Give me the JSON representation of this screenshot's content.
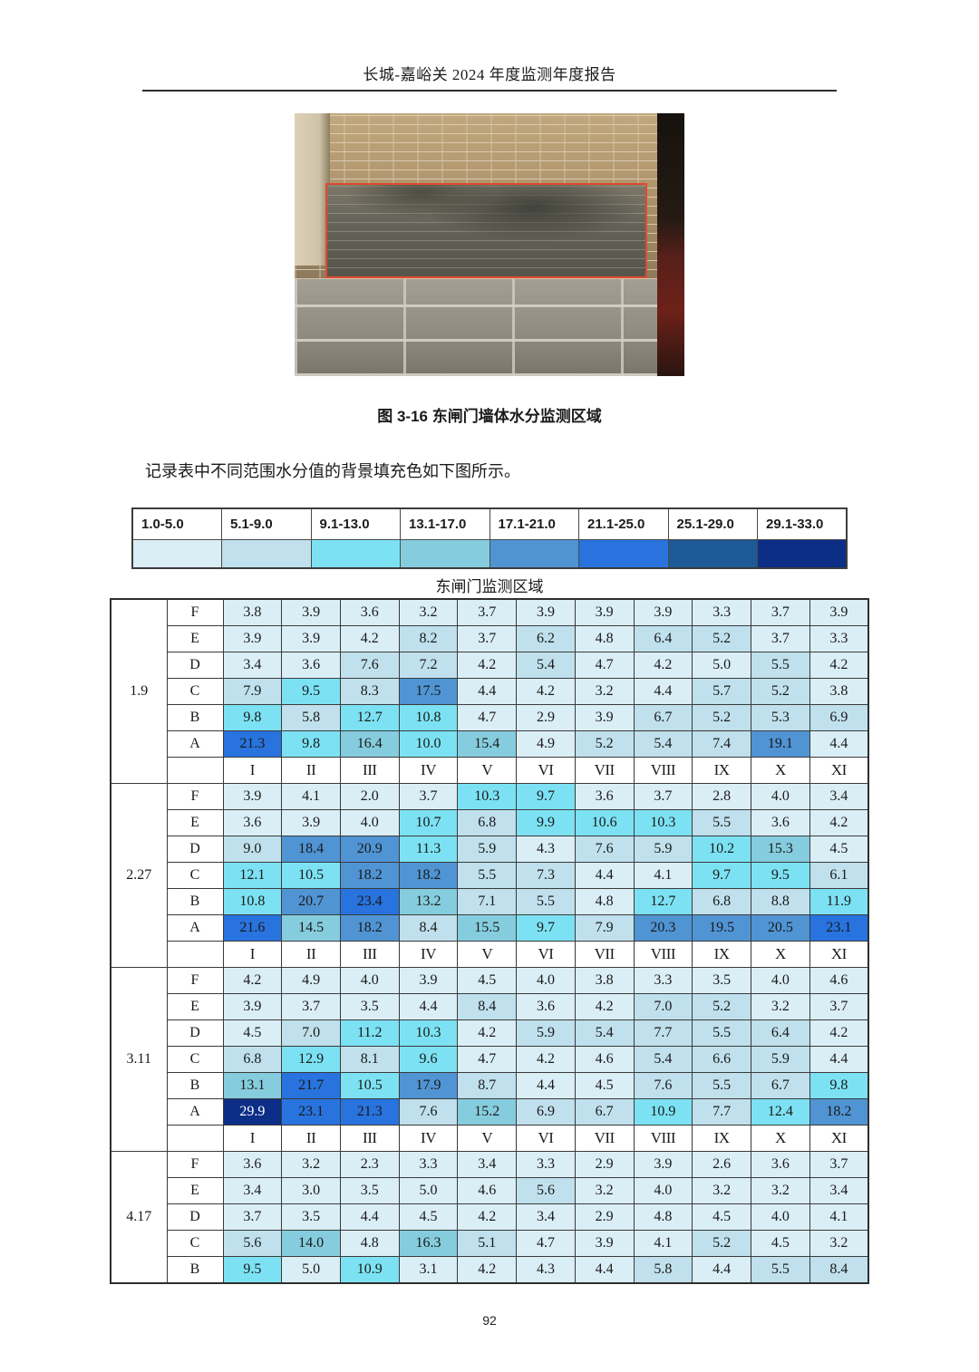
{
  "header": {
    "title": "长城-嘉峪关 2024 年度监测年度报告"
  },
  "figure": {
    "caption": "图 3-16 东闸门墙体水分监测区域"
  },
  "paragraph": "记录表中不同范围水分值的背景填充色如下图所示。",
  "legend": {
    "ranges": [
      "1.0-5.0",
      "5.1-9.0",
      "9.1-13.0",
      "13.1-17.0",
      "17.1-21.0",
      "21.1-25.0",
      "25.1-29.0",
      "29.1-33.0"
    ],
    "colors": [
      "#daeef6",
      "#bfe0ec",
      "#7ce2f3",
      "#85cdde",
      "#5094d4",
      "#2873de",
      "#1d5897",
      "#0d2e87"
    ],
    "upper_bounds": [
      5.0,
      9.0,
      13.0,
      17.0,
      21.0,
      25.0,
      29.0,
      33.0
    ]
  },
  "table": {
    "title": "东闸门监测区域",
    "column_labels": [
      "I",
      "II",
      "III",
      "IV",
      "V",
      "VI",
      "VII",
      "VIII",
      "IX",
      "X",
      "XI"
    ],
    "sections": [
      {
        "group": "1.9",
        "numerals": true,
        "rows": [
          {
            "label": "F",
            "values": [
              "3.8",
              "3.9",
              "3.6",
              "3.2",
              "3.7",
              "3.9",
              "3.9",
              "3.9",
              "3.3",
              "3.7",
              "3.9"
            ]
          },
          {
            "label": "E",
            "values": [
              "3.9",
              "3.9",
              "4.2",
              "8.2",
              "3.7",
              "6.2",
              "4.8",
              "6.4",
              "5.2",
              "3.7",
              "3.3"
            ]
          },
          {
            "label": "D",
            "values": [
              "3.4",
              "3.6",
              "7.6",
              "7.2",
              "4.2",
              "5.4",
              "4.7",
              "4.2",
              "5.0",
              "5.5",
              "4.2"
            ]
          },
          {
            "label": "C",
            "values": [
              "7.9",
              "9.5",
              "8.3",
              "17.5",
              "4.4",
              "4.2",
              "3.2",
              "4.4",
              "5.7",
              "5.2",
              "3.8"
            ]
          },
          {
            "label": "B",
            "values": [
              "9.8",
              "5.8",
              "12.7",
              "10.8",
              "4.7",
              "2.9",
              "3.9",
              "6.7",
              "5.2",
              "5.3",
              "6.9"
            ]
          },
          {
            "label": "A",
            "values": [
              "21.3",
              "9.8",
              "16.4",
              "10.0",
              "15.4",
              "4.9",
              "5.2",
              "5.4",
              "7.4",
              "19.1",
              "4.4"
            ]
          }
        ]
      },
      {
        "group": "2.27",
        "numerals": true,
        "rows": [
          {
            "label": "F",
            "values": [
              "3.9",
              "4.1",
              "2.0",
              "3.7",
              "10.3",
              "9.7",
              "3.6",
              "3.7",
              "2.8",
              "4.0",
              "3.4"
            ]
          },
          {
            "label": "E",
            "values": [
              "3.6",
              "3.9",
              "4.0",
              "10.7",
              "6.8",
              "9.9",
              "10.6",
              "10.3",
              "5.5",
              "3.6",
              "4.2"
            ]
          },
          {
            "label": "D",
            "values": [
              "9.0",
              "18.4",
              "20.9",
              "11.3",
              "5.9",
              "4.3",
              "7.6",
              "5.9",
              "10.2",
              "15.3",
              "4.5"
            ]
          },
          {
            "label": "C",
            "values": [
              "12.1",
              "10.5",
              "18.2",
              "18.2",
              "5.5",
              "7.3",
              "4.4",
              "4.1",
              "9.7",
              "9.5",
              "6.1"
            ]
          },
          {
            "label": "B",
            "values": [
              "10.8",
              "20.7",
              "23.4",
              "13.2",
              "7.1",
              "5.5",
              "4.8",
              "12.7",
              "6.8",
              "8.8",
              "11.9"
            ]
          },
          {
            "label": "A",
            "values": [
              "21.6",
              "14.5",
              "18.2",
              "8.4",
              "15.5",
              "9.7",
              "7.9",
              "20.3",
              "19.5",
              "20.5",
              "23.1"
            ]
          }
        ]
      },
      {
        "group": "3.11",
        "numerals": true,
        "rows": [
          {
            "label": "F",
            "values": [
              "4.2",
              "4.9",
              "4.0",
              "3.9",
              "4.5",
              "4.0",
              "3.8",
              "3.3",
              "3.5",
              "4.0",
              "4.6"
            ]
          },
          {
            "label": "E",
            "values": [
              "3.9",
              "3.7",
              "3.5",
              "4.4",
              "8.4",
              "3.6",
              "4.2",
              "7.0",
              "5.2",
              "3.2",
              "3.7"
            ]
          },
          {
            "label": "D",
            "values": [
              "4.5",
              "7.0",
              "11.2",
              "10.3",
              "4.2",
              "5.9",
              "5.4",
              "7.7",
              "5.5",
              "6.4",
              "4.2"
            ]
          },
          {
            "label": "C",
            "values": [
              "6.8",
              "12.9",
              "8.1",
              "9.6",
              "4.7",
              "4.2",
              "4.6",
              "5.4",
              "6.6",
              "5.9",
              "4.4"
            ]
          },
          {
            "label": "B",
            "values": [
              "13.1",
              "21.7",
              "10.5",
              "17.9",
              "8.7",
              "4.4",
              "4.5",
              "7.6",
              "5.5",
              "6.7",
              "9.8"
            ]
          },
          {
            "label": "A",
            "values": [
              "29.9",
              "23.1",
              "21.3",
              "7.6",
              "15.2",
              "6.9",
              "6.7",
              "10.9",
              "7.7",
              "12.4",
              "18.2"
            ]
          }
        ]
      },
      {
        "group": "4.17",
        "numerals": false,
        "rows": [
          {
            "label": "F",
            "values": [
              "3.6",
              "3.2",
              "2.3",
              "3.3",
              "3.4",
              "3.3",
              "2.9",
              "3.9",
              "2.6",
              "3.6",
              "3.7"
            ]
          },
          {
            "label": "E",
            "values": [
              "3.4",
              "3.0",
              "3.5",
              "5.0",
              "4.6",
              "5.6",
              "3.2",
              "4.0",
              "3.2",
              "3.2",
              "3.4"
            ]
          },
          {
            "label": "D",
            "values": [
              "3.7",
              "3.5",
              "4.4",
              "4.5",
              "4.2",
              "3.4",
              "2.9",
              "4.8",
              "4.5",
              "4.0",
              "4.1"
            ]
          },
          {
            "label": "C",
            "values": [
              "5.6",
              "14.0",
              "4.8",
              "16.3",
              "5.1",
              "4.7",
              "3.9",
              "4.1",
              "5.2",
              "4.5",
              "3.2"
            ]
          },
          {
            "label": "B",
            "values": [
              "9.5",
              "5.0",
              "10.9",
              "3.1",
              "4.2",
              "4.3",
              "4.4",
              "5.8",
              "4.4",
              "5.5",
              "8.4"
            ]
          }
        ]
      }
    ]
  },
  "page_number": "92"
}
